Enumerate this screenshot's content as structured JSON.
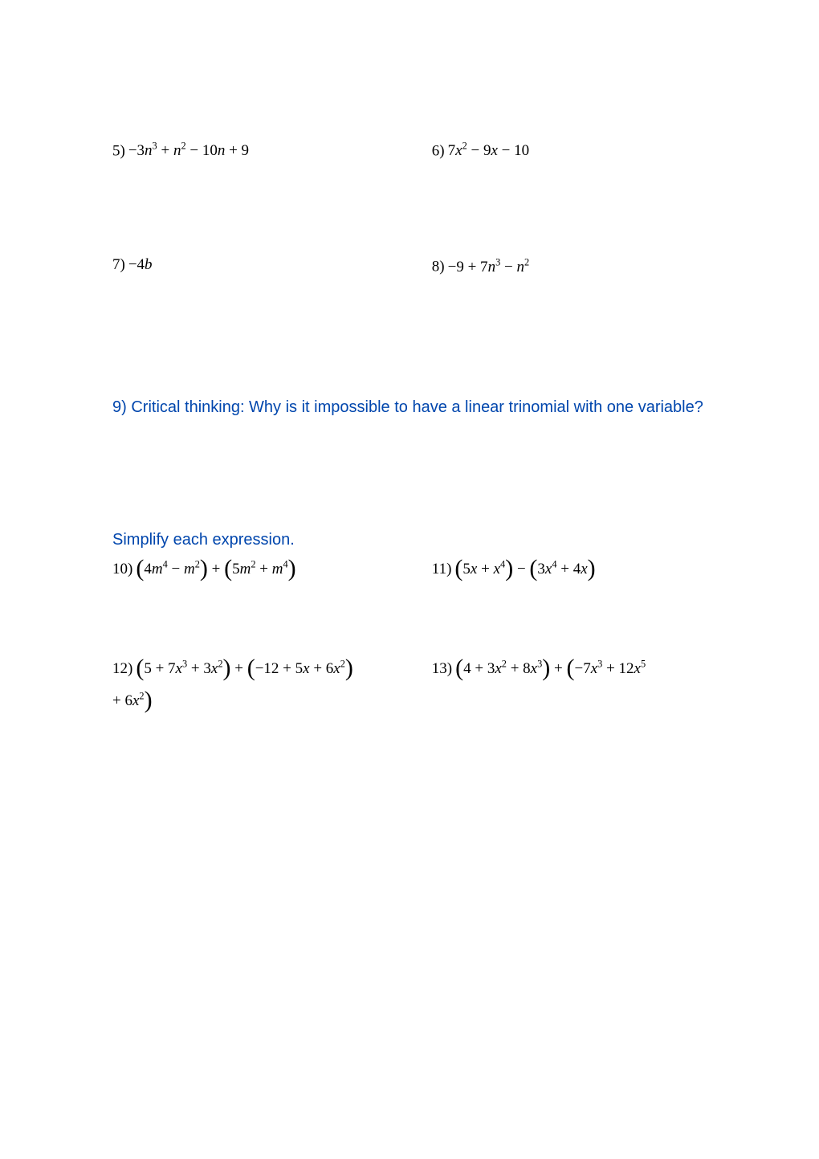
{
  "colors": {
    "text_black": "#000000",
    "text_blue": "#0046ad",
    "background": "#ffffff"
  },
  "fonts": {
    "math": "Times New Roman",
    "prose": "Comic Sans MS",
    "math_size": 19,
    "prose_size": 20
  },
  "problems": {
    "p5": {
      "num": "5)",
      "expr": " −3n³ + n² − 10n + 9"
    },
    "p6": {
      "num": "6)",
      "expr": " 7x² − 9x − 10"
    },
    "p7": {
      "num": "7)",
      "expr": " −4b"
    },
    "p8": {
      "num": "8)",
      "expr": " −9 + 7n³ − n²"
    },
    "p9": {
      "text": "9)  Critical thinking: Why is it impossible to have a linear trinomial with one variable?"
    },
    "simplify_heading": "Simplify each expression.",
    "p10": {
      "num": "10)",
      "part1": "4m⁴ − m²",
      "op": " + ",
      "part2": "5m² + m⁴"
    },
    "p11": {
      "num": "11)",
      "part1": "5x + x⁴",
      "op": " − ",
      "part2": "3x⁴ + 4x"
    },
    "p12": {
      "num": "12)",
      "part1": "5 + 7x³ + 3x²",
      "op": " + ",
      "part2": "−12 + 5x + 6x²",
      "continuation": "+ 6x²"
    },
    "p13": {
      "num": "13)",
      "part1": "4 + 3x² + 8x³",
      "op": " + ",
      "part2": "−7x³ + 12x⁵"
    }
  }
}
